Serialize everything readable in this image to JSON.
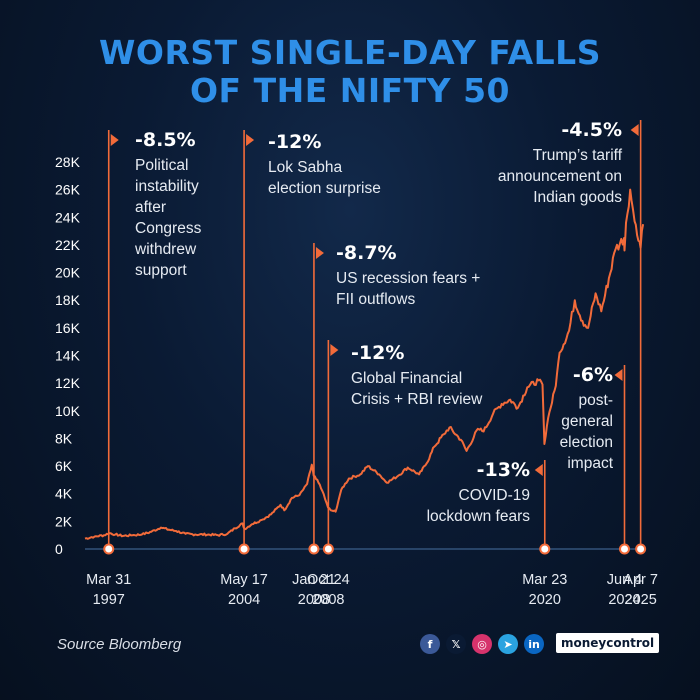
{
  "title_line1": "WORST SINGLE-DAY FALLS",
  "title_line2": "OF THE NIFTY 50",
  "source": "Source Bloomberg",
  "social": [
    {
      "name": "facebook-icon",
      "glyph": "f",
      "color": "#3b5998"
    },
    {
      "name": "x-icon",
      "glyph": "𝕏",
      "color": "#0a1a33"
    },
    {
      "name": "instagram-icon",
      "glyph": "◎",
      "color": "#d6336c"
    },
    {
      "name": "telegram-icon",
      "glyph": "➤",
      "color": "#2aa3e0"
    },
    {
      "name": "linkedin-icon",
      "glyph": "in",
      "color": "#0a66c2"
    }
  ],
  "brand": "moneycontrol",
  "colors": {
    "accent": "#f26b3a",
    "title": "#2f8fe8",
    "background": "#0a1a33"
  },
  "chart_data": {
    "type": "line",
    "x_start_year": 1996,
    "x_end_year": 2025.5,
    "ylim": [
      0,
      28000
    ],
    "yticks": [
      0,
      2000,
      4000,
      6000,
      8000,
      10000,
      12000,
      14000,
      16000,
      18000,
      20000,
      22000,
      24000,
      26000,
      28000
    ],
    "ytick_labels": [
      "0",
      "2K",
      "4K",
      "6K",
      "8K",
      "10K",
      "12K",
      "14K",
      "16K",
      "18K",
      "20K",
      "22K",
      "24K",
      "26K",
      "28K"
    ],
    "series": [
      {
        "points": [
          [
            1996.0,
            750
          ],
          [
            1996.5,
            900
          ],
          [
            1997.0,
            1000
          ],
          [
            1997.3,
            1150
          ],
          [
            1997.6,
            1050
          ],
          [
            1998.0,
            950
          ],
          [
            1998.5,
            1000
          ],
          [
            1999.0,
            1050
          ],
          [
            1999.5,
            1250
          ],
          [
            2000.0,
            1550
          ],
          [
            2000.4,
            1400
          ],
          [
            2000.8,
            1300
          ],
          [
            2001.3,
            1100
          ],
          [
            2001.8,
            1050
          ],
          [
            2002.5,
            1050
          ],
          [
            2003.0,
            1000
          ],
          [
            2003.5,
            1100
          ],
          [
            2003.9,
            1500
          ],
          [
            2004.3,
            1850
          ],
          [
            2004.4,
            1450
          ],
          [
            2004.8,
            1800
          ],
          [
            2005.3,
            2100
          ],
          [
            2005.8,
            2500
          ],
          [
            2006.3,
            3200
          ],
          [
            2006.5,
            2800
          ],
          [
            2006.9,
            3700
          ],
          [
            2007.3,
            3900
          ],
          [
            2007.7,
            4700
          ],
          [
            2007.95,
            6100
          ],
          [
            2008.05,
            5300
          ],
          [
            2008.3,
            4800
          ],
          [
            2008.5,
            4200
          ],
          [
            2008.8,
            3000
          ],
          [
            2008.95,
            2800
          ],
          [
            2009.2,
            2700
          ],
          [
            2009.5,
            4300
          ],
          [
            2009.9,
            5100
          ],
          [
            2010.5,
            5400
          ],
          [
            2010.9,
            6000
          ],
          [
            2011.5,
            5400
          ],
          [
            2011.9,
            4800
          ],
          [
            2012.5,
            5300
          ],
          [
            2013.0,
            5900
          ],
          [
            2013.6,
            5400
          ],
          [
            2014.0,
            6200
          ],
          [
            2014.4,
            7400
          ],
          [
            2014.9,
            8300
          ],
          [
            2015.2,
            8800
          ],
          [
            2015.8,
            7900
          ],
          [
            2016.1,
            7100
          ],
          [
            2016.7,
            8700
          ],
          [
            2017.0,
            8500
          ],
          [
            2017.5,
            9800
          ],
          [
            2017.95,
            10500
          ],
          [
            2018.4,
            10800
          ],
          [
            2018.8,
            10200
          ],
          [
            2019.3,
            11700
          ],
          [
            2019.9,
            12200
          ],
          [
            2020.1,
            11900
          ],
          [
            2020.2,
            7600
          ],
          [
            2020.4,
            9500
          ],
          [
            2020.8,
            11800
          ],
          [
            2021.0,
            14200
          ],
          [
            2021.5,
            15800
          ],
          [
            2021.8,
            18000
          ],
          [
            2022.2,
            16500
          ],
          [
            2022.5,
            16000
          ],
          [
            2022.9,
            18500
          ],
          [
            2023.2,
            17200
          ],
          [
            2023.6,
            19600
          ],
          [
            2023.95,
            21700
          ],
          [
            2024.4,
            22500
          ],
          [
            2024.42,
            21600
          ],
          [
            2024.5,
            23600
          ],
          [
            2024.72,
            26000
          ],
          [
            2024.95,
            23700
          ],
          [
            2025.15,
            22300
          ],
          [
            2025.27,
            21800
          ],
          [
            2025.4,
            23500
          ]
        ]
      }
    ],
    "annotations": [
      {
        "pct": "-8.5%",
        "text": [
          "Political",
          "instability",
          "after",
          "Congress",
          "withdrew",
          "support"
        ],
        "x": 1997.25,
        "date": [
          "Mar 31",
          "1997"
        ]
      },
      {
        "pct": "-12%",
        "text": [
          "Lok Sabha",
          "election surprise"
        ],
        "x": 2004.38,
        "date": [
          "May 17",
          "2004"
        ]
      },
      {
        "pct": "-8.7%",
        "text": [
          "US recession fears +",
          "FII outflows"
        ],
        "x": 2008.06,
        "date": [
          "Jan 21",
          "2008"
        ]
      },
      {
        "pct": "-12%",
        "text": [
          "Global Financial",
          "Crisis + RBI review"
        ],
        "x": 2008.82,
        "date": [
          "Oct 24",
          "2008"
        ]
      },
      {
        "pct": "-13%",
        "text": [
          "COVID-19",
          "lockdown fears"
        ],
        "x": 2020.22,
        "date": [
          "Mar 23",
          "2020"
        ]
      },
      {
        "pct": "-6%",
        "text": [
          "post-",
          "general",
          "election",
          "impact"
        ],
        "x": 2024.42,
        "date": [
          "Jun 4",
          "2024"
        ]
      },
      {
        "pct": "-4.5%",
        "text": [
          "Trump’s tariff",
          "announcement on",
          "Indian goods"
        ],
        "x": 2025.27,
        "date": [
          "Apr 7",
          "2025"
        ]
      }
    ]
  }
}
